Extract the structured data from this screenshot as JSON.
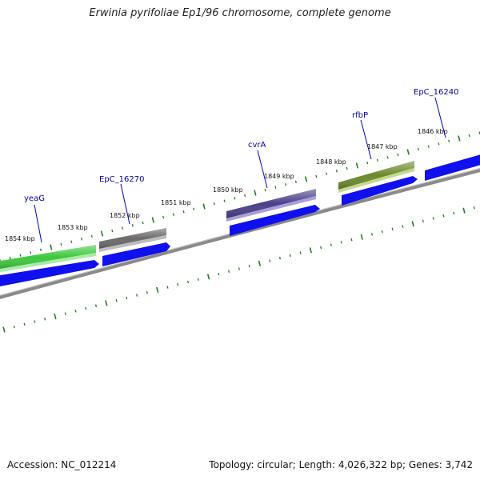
{
  "title": "Erwinia pyrifoliae Ep1/96 chromosome, complete genome",
  "footer": {
    "accession_label": "Accession:",
    "accession": "NC_012214",
    "topology_label": "Topology:",
    "topology": "circular",
    "length_label": "Length:",
    "length": "4,026,322 bp",
    "genes_label": "Genes:",
    "genes": "3,742"
  },
  "colors": {
    "tick": "#1e7e1e",
    "backbone": "#8a8a8a",
    "label_line": "#0000cc",
    "label_text": "#0000aa",
    "cds": "#1010ee"
  },
  "map": {
    "position_unit": "kbp",
    "visible_range_kbp": [
      1845.6,
      1854.6
    ],
    "position_labels": [
      "1846 kbp",
      "1847 kbp",
      "1848 kbp",
      "1849 kbp",
      "1850 kbp",
      "1851 kbp",
      "1852 kbp",
      "1853 kbp",
      "1854 kbp"
    ],
    "features": [
      {
        "name": "yeaG",
        "type": "gene",
        "color": "#3ec83e"
      },
      {
        "name": "EpC_16270",
        "type": "gene",
        "color": "#6a6a6a"
      },
      {
        "name": "cvrA",
        "type": "gene",
        "color": "#4a3f8a"
      },
      {
        "name": "rfbP",
        "type": "gene",
        "color": "#6b8a2c"
      },
      {
        "name": "EpC_16240",
        "type": "gene",
        "color": "#1010ee"
      }
    ]
  }
}
